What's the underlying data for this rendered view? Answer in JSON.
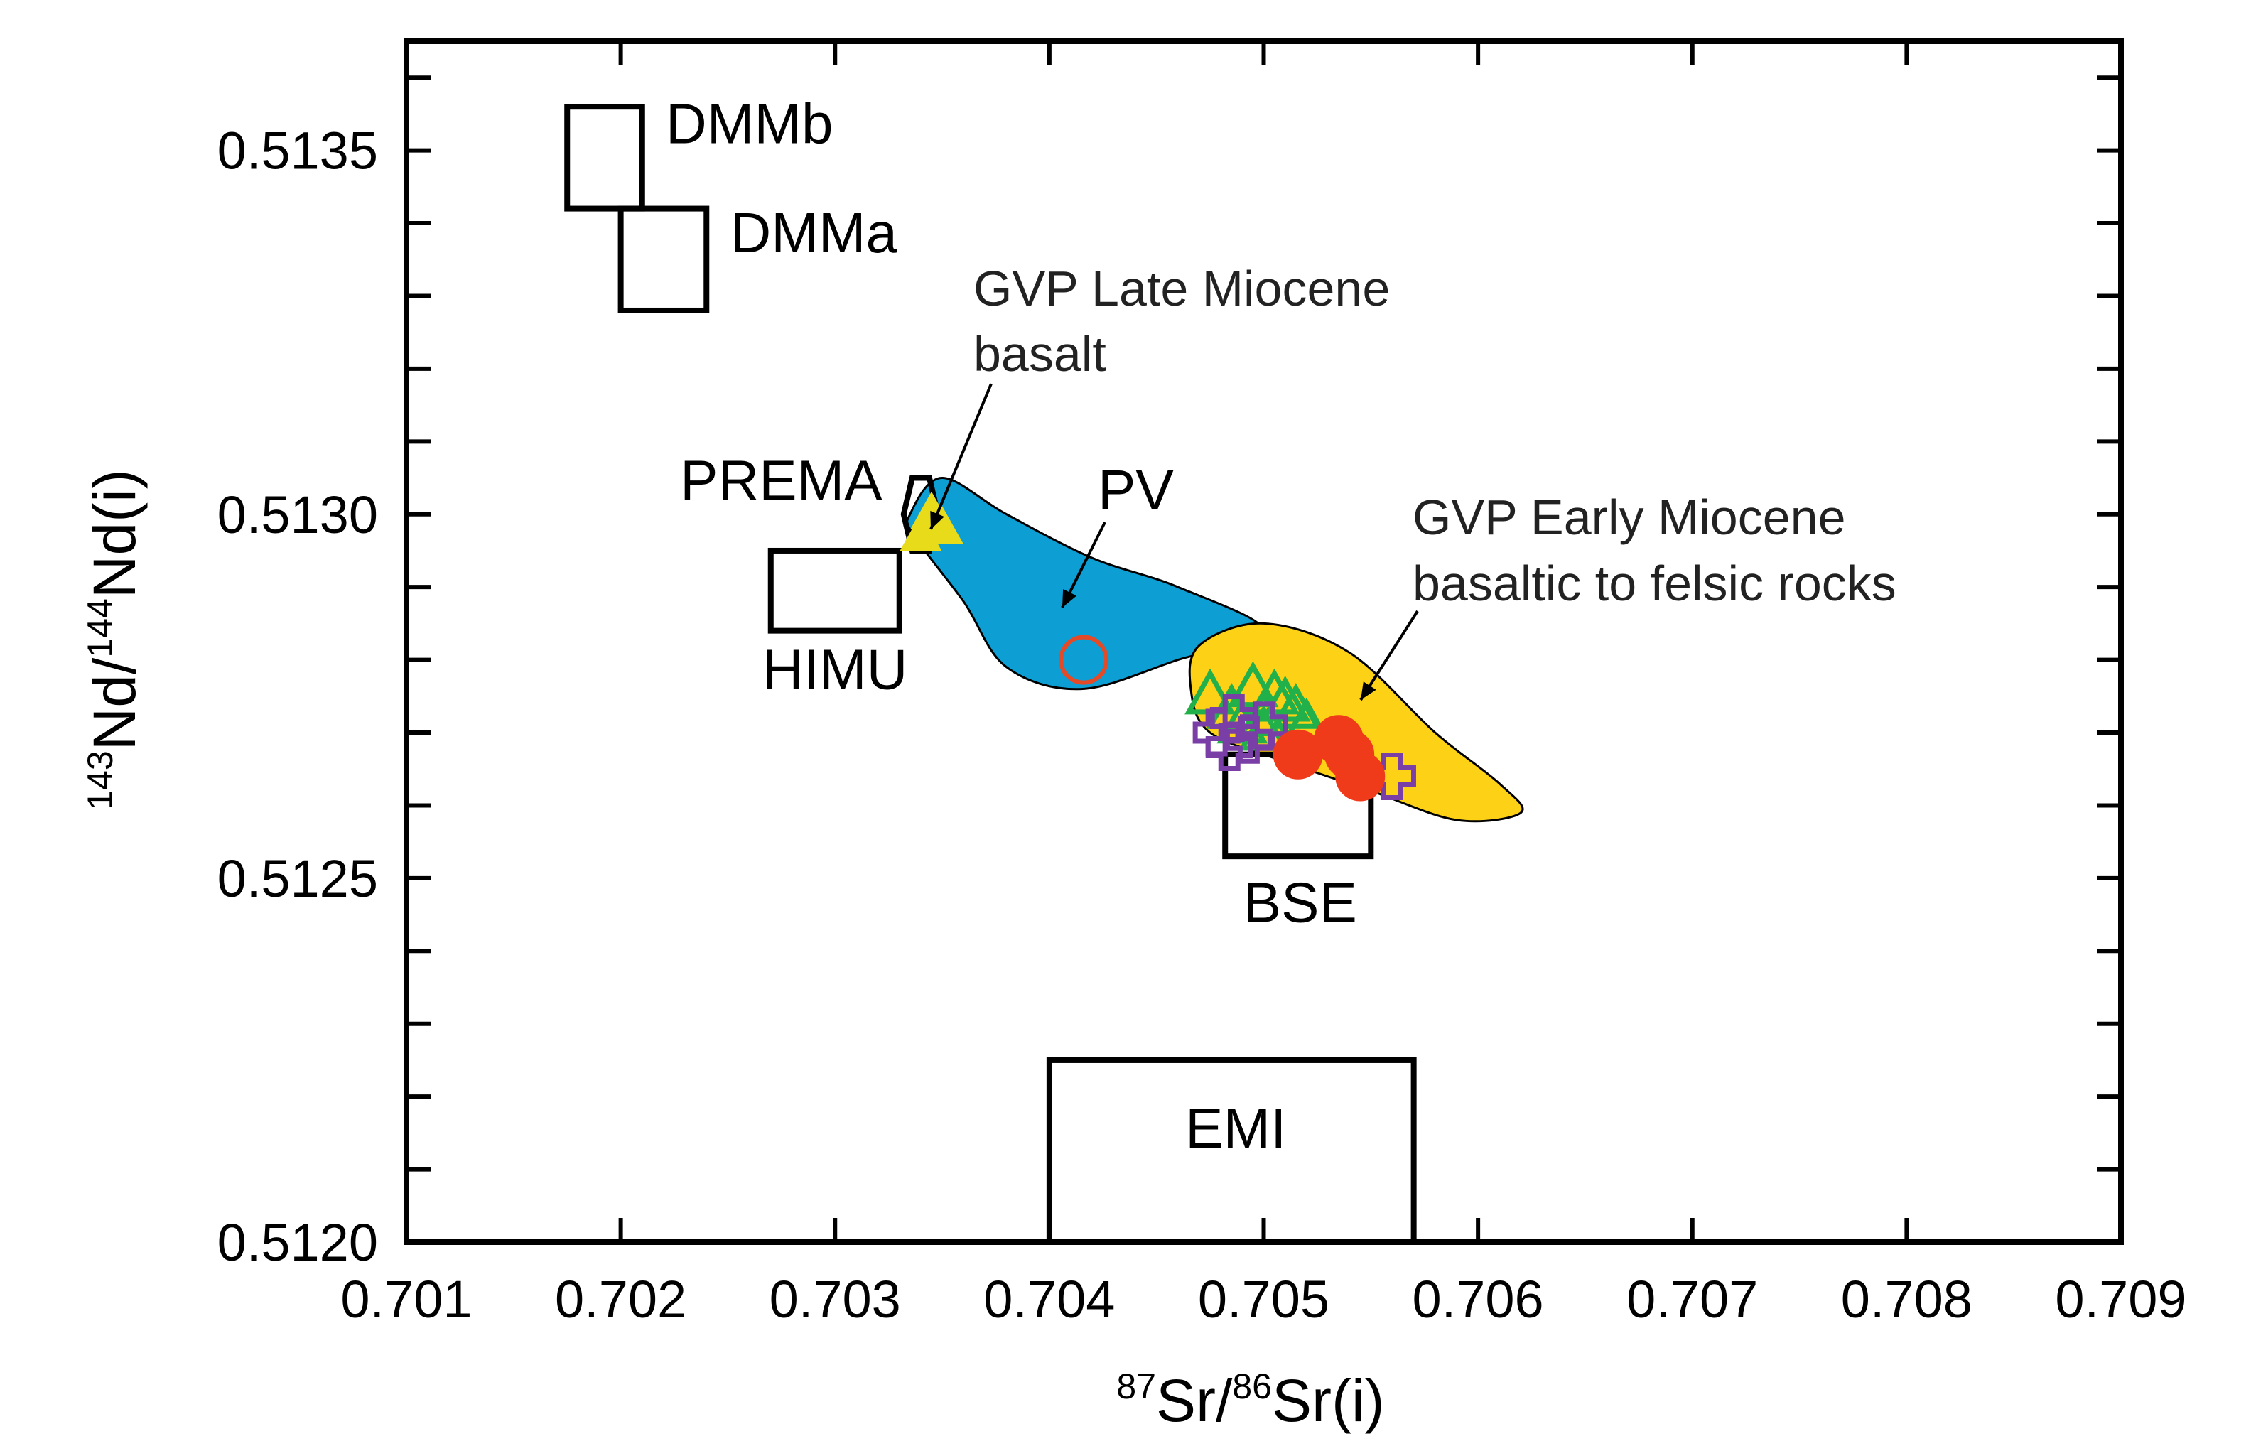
{
  "chart_data": {
    "type": "scatter",
    "title": "",
    "xlabel": {
      "pre1": "87",
      "main1": "Sr/",
      "pre2": "86",
      "main2": "Sr(i)"
    },
    "ylabel": {
      "pre1": "143",
      "main1": "Nd/",
      "pre2": "144",
      "main2": "Nd(i)"
    },
    "xlim": [
      0.701,
      0.709
    ],
    "ylim": [
      0.512,
      0.51365
    ],
    "x_ticks": [
      "0.701",
      "0.702",
      "0.703",
      "0.704",
      "0.705",
      "0.706",
      "0.707",
      "0.708",
      "0.709"
    ],
    "y_ticks": [
      "0.5120",
      "0.5125",
      "0.5130",
      "0.5135"
    ],
    "grid": false,
    "reservoirs": [
      {
        "name": "DMMb",
        "x": [
          0.70175,
          0.7021
        ],
        "y": [
          0.51342,
          0.51356
        ]
      },
      {
        "name": "DMMa",
        "x": [
          0.702,
          0.7024
        ],
        "y": [
          0.51328,
          0.51342
        ]
      },
      {
        "name": "HIMU",
        "x": [
          0.7027,
          0.7033
        ],
        "y": [
          0.51284,
          0.51295
        ]
      },
      {
        "name": "BSE",
        "x": [
          0.70482,
          0.7055
        ],
        "y": [
          0.51253,
          0.51267
        ]
      },
      {
        "name": "EMI",
        "x": [
          0.704,
          0.7057
        ],
        "y": [
          0.512,
          0.51225
        ]
      }
    ],
    "prema": {
      "name": "PREMA",
      "center": [
        0.7034,
        0.513
      ],
      "size": [
        0.00016,
        0.0001
      ]
    },
    "fields": [
      {
        "name": "PV",
        "color": "#0d9ed4",
        "label": "PV",
        "outline": [
          [
            0.70335,
            0.513
          ],
          [
            0.7035,
            0.51305
          ],
          [
            0.7038,
            0.513
          ],
          [
            0.7042,
            0.51294
          ],
          [
            0.7046,
            0.5129
          ],
          [
            0.705,
            0.51284
          ],
          [
            0.7046,
            0.5128
          ],
          [
            0.70415,
            0.51276
          ],
          [
            0.7038,
            0.51279
          ],
          [
            0.7036,
            0.51288
          ],
          [
            0.70337,
            0.51297
          ]
        ]
      },
      {
        "name": "GVP Early Miocene field",
        "color": "#fcd116",
        "label": "GVP Early Miocene basaltic to felsic rocks",
        "outline": [
          [
            0.7047,
            0.51282
          ],
          [
            0.705,
            0.51285
          ],
          [
            0.7054,
            0.51281
          ],
          [
            0.7058,
            0.5127
          ],
          [
            0.7061,
            0.51263
          ],
          [
            0.7062,
            0.51259
          ],
          [
            0.7059,
            0.51258
          ],
          [
            0.7055,
            0.51262
          ],
          [
            0.7051,
            0.51266
          ],
          [
            0.70475,
            0.5127
          ],
          [
            0.70466,
            0.51276
          ]
        ]
      }
    ],
    "series": [
      {
        "name": "GVP Late Miocene basalt",
        "marker": "filled-triangle",
        "color": "#e8dc1a",
        "points": [
          [
            0.70345,
            0.513
          ],
          [
            0.7035,
            0.51298
          ],
          [
            0.7034,
            0.51297
          ]
        ]
      },
      {
        "name": "PV open circle",
        "marker": "open-circle",
        "color": "#e34a27",
        "points": [
          [
            0.70416,
            0.5128
          ]
        ]
      },
      {
        "name": "GVP Early Miocene open triangles",
        "marker": "open-triangle",
        "color": "#22b04a",
        "points": [
          [
            0.70475,
            0.51275
          ],
          [
            0.70485,
            0.51273
          ],
          [
            0.70495,
            0.51276
          ],
          [
            0.705,
            0.51272
          ],
          [
            0.70505,
            0.51275
          ],
          [
            0.7051,
            0.51274
          ],
          [
            0.70515,
            0.51273
          ],
          [
            0.7052,
            0.51271
          ],
          [
            0.705,
            0.5127
          ],
          [
            0.7049,
            0.51271
          ]
        ]
      },
      {
        "name": "GVP Early Miocene open crosses",
        "marker": "open-cross",
        "color": "#7a3fa6",
        "points": [
          [
            0.70478,
            0.5127
          ],
          [
            0.70486,
            0.51272
          ],
          [
            0.70493,
            0.51269
          ],
          [
            0.705,
            0.51271
          ],
          [
            0.70484,
            0.51268
          ],
          [
            0.7056,
            0.51264
          ]
        ]
      },
      {
        "name": "GVP Early Miocene filled circles",
        "marker": "filled-circle",
        "color": "#f03b1b",
        "points": [
          [
            0.70516,
            0.51267
          ],
          [
            0.70535,
            0.51269
          ],
          [
            0.70545,
            0.51264
          ],
          [
            0.7054,
            0.51267
          ]
        ]
      }
    ],
    "annotations": {
      "late_miocene": [
        "GVP Late Miocene",
        "basalt"
      ],
      "early_miocene": [
        "GVP Early Miocene",
        "basaltic to felsic rocks"
      ],
      "pv": "PV"
    }
  }
}
